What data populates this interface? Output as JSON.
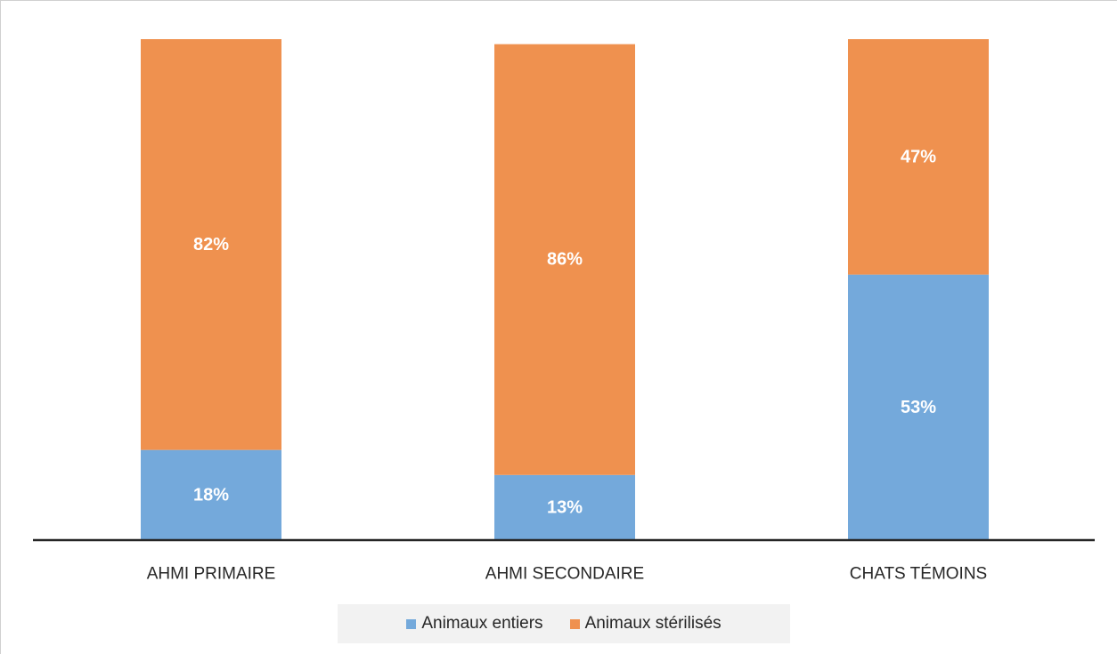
{
  "chart_data": {
    "type": "bar",
    "stacked": true,
    "percent_stacked": true,
    "categories": [
      "AHMI PRIMAIRE",
      "AHMI SECONDAIRE",
      "CHATS TÉMOINS"
    ],
    "series": [
      {
        "name": "Animaux entiers",
        "values": [
          18,
          13,
          53
        ],
        "labels": [
          "18%",
          "13%",
          "53%"
        ],
        "color": "#74a9db"
      },
      {
        "name": "Animaux stérilisés",
        "values": [
          82,
          86,
          47
        ],
        "labels": [
          "82%",
          "86%",
          "47%"
        ],
        "color": "#ef914f"
      }
    ],
    "ylim": [
      0,
      100
    ],
    "grid": false,
    "legend_position": "bottom"
  },
  "legend": {
    "items": [
      {
        "label": "Animaux entiers",
        "color": "#74a9db"
      },
      {
        "label": "Animaux stérilisés",
        "color": "#ef914f"
      }
    ]
  }
}
